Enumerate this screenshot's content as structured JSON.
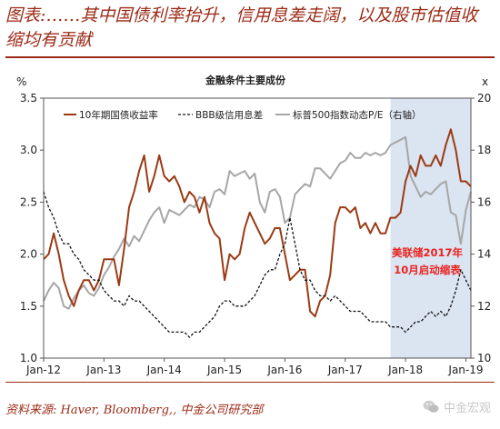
{
  "figure": {
    "title": "图表:……其中国债利率抬升，信用息差走阔，以及股市估值收缩均有贡献",
    "source": "资料来源: Haver, Bloomberg,, 中金公司研究部",
    "watermark": "中金宏观"
  },
  "chart_data": {
    "type": "line",
    "title": "金融条件主要成份",
    "left_axis": {
      "unit_label": "%",
      "range": [
        1.0,
        3.5
      ],
      "ticks": [
        "1.0",
        "1.5",
        "2.0",
        "2.5",
        "3.0",
        "3.5"
      ]
    },
    "right_axis": {
      "unit_label": "x",
      "range": [
        10,
        20
      ],
      "ticks": [
        "10",
        "12",
        "14",
        "16",
        "18",
        "20"
      ]
    },
    "x_axis": {
      "range": [
        "2012-01",
        "2019-02"
      ],
      "ticks": [
        "Jan-12",
        "Jan-13",
        "Jan-14",
        "Jan-15",
        "Jan-16",
        "Jan-17",
        "Jan-18",
        "Jan-19"
      ]
    },
    "legend_position": "top",
    "grid": false,
    "shaded_region": {
      "start": "2017-10",
      "end": "2019-02",
      "color": "#dbe4f1"
    },
    "annotation": {
      "lines": [
        "美联储2017年",
        "10月启动缩表"
      ],
      "color": "#e8231f"
    },
    "series": [
      {
        "name": "10年期国债收益率",
        "axis": "left",
        "color": "#9b3a14",
        "style": "solid",
        "points": [
          [
            "2012-01",
            1.95
          ],
          [
            "2012-02",
            2.0
          ],
          [
            "2012-03",
            2.2
          ],
          [
            "2012-04",
            2.0
          ],
          [
            "2012-05",
            1.75
          ],
          [
            "2012-06",
            1.6
          ],
          [
            "2012-07",
            1.5
          ],
          [
            "2012-08",
            1.65
          ],
          [
            "2012-09",
            1.75
          ],
          [
            "2012-10",
            1.75
          ],
          [
            "2012-11",
            1.65
          ],
          [
            "2012-12",
            1.75
          ],
          [
            "2013-01",
            1.95
          ],
          [
            "2013-02",
            1.95
          ],
          [
            "2013-03",
            1.95
          ],
          [
            "2013-04",
            1.7
          ],
          [
            "2013-05",
            2.05
          ],
          [
            "2013-06",
            2.45
          ],
          [
            "2013-07",
            2.6
          ],
          [
            "2013-08",
            2.8
          ],
          [
            "2013-09",
            2.95
          ],
          [
            "2013-10",
            2.6
          ],
          [
            "2013-11",
            2.75
          ],
          [
            "2013-12",
            2.95
          ],
          [
            "2014-01",
            2.75
          ],
          [
            "2014-02",
            2.7
          ],
          [
            "2014-03",
            2.75
          ],
          [
            "2014-04",
            2.65
          ],
          [
            "2014-05",
            2.5
          ],
          [
            "2014-06",
            2.6
          ],
          [
            "2014-07",
            2.55
          ],
          [
            "2014-08",
            2.4
          ],
          [
            "2014-09",
            2.55
          ],
          [
            "2014-10",
            2.3
          ],
          [
            "2014-11",
            2.2
          ],
          [
            "2014-12",
            2.15
          ],
          [
            "2015-01",
            1.75
          ],
          [
            "2015-02",
            2.0
          ],
          [
            "2015-03",
            1.95
          ],
          [
            "2015-04",
            2.0
          ],
          [
            "2015-05",
            2.25
          ],
          [
            "2015-06",
            2.4
          ],
          [
            "2015-07",
            2.3
          ],
          [
            "2015-08",
            2.2
          ],
          [
            "2015-09",
            2.1
          ],
          [
            "2015-10",
            2.15
          ],
          [
            "2015-11",
            2.25
          ],
          [
            "2015-12",
            2.25
          ],
          [
            "2016-01",
            2.0
          ],
          [
            "2016-02",
            1.75
          ],
          [
            "2016-03",
            1.8
          ],
          [
            "2016-04",
            1.85
          ],
          [
            "2016-05",
            1.85
          ],
          [
            "2016-06",
            1.45
          ],
          [
            "2016-07",
            1.4
          ],
          [
            "2016-08",
            1.55
          ],
          [
            "2016-09",
            1.6
          ],
          [
            "2016-10",
            1.8
          ],
          [
            "2016-11",
            2.3
          ],
          [
            "2016-12",
            2.45
          ],
          [
            "2017-01",
            2.45
          ],
          [
            "2017-02",
            2.4
          ],
          [
            "2017-03",
            2.45
          ],
          [
            "2017-04",
            2.25
          ],
          [
            "2017-05",
            2.3
          ],
          [
            "2017-06",
            2.2
          ],
          [
            "2017-07",
            2.3
          ],
          [
            "2017-08",
            2.2
          ],
          [
            "2017-09",
            2.2
          ],
          [
            "2017-10",
            2.35
          ],
          [
            "2017-11",
            2.35
          ],
          [
            "2017-12",
            2.4
          ],
          [
            "2018-01",
            2.7
          ],
          [
            "2018-02",
            2.85
          ],
          [
            "2018-03",
            2.75
          ],
          [
            "2018-04",
            2.95
          ],
          [
            "2018-05",
            2.85
          ],
          [
            "2018-06",
            2.85
          ],
          [
            "2018-07",
            2.95
          ],
          [
            "2018-08",
            2.85
          ],
          [
            "2018-09",
            3.05
          ],
          [
            "2018-10",
            3.2
          ],
          [
            "2018-11",
            3.0
          ],
          [
            "2018-12",
            2.7
          ],
          [
            "2019-01",
            2.7
          ],
          [
            "2019-02",
            2.65
          ]
        ]
      },
      {
        "name": "BBB级信用息差",
        "axis": "left",
        "color": "#111111",
        "style": "dashed",
        "points": [
          [
            "2012-01",
            2.6
          ],
          [
            "2012-02",
            2.45
          ],
          [
            "2012-03",
            2.35
          ],
          [
            "2012-04",
            2.2
          ],
          [
            "2012-05",
            2.1
          ],
          [
            "2012-06",
            2.1
          ],
          [
            "2012-07",
            2.0
          ],
          [
            "2012-08",
            1.95
          ],
          [
            "2012-09",
            1.85
          ],
          [
            "2012-10",
            1.8
          ],
          [
            "2012-11",
            1.75
          ],
          [
            "2012-12",
            1.75
          ],
          [
            "2013-01",
            1.65
          ],
          [
            "2013-02",
            1.6
          ],
          [
            "2013-03",
            1.55
          ],
          [
            "2013-04",
            1.55
          ],
          [
            "2013-05",
            1.5
          ],
          [
            "2013-06",
            1.6
          ],
          [
            "2013-07",
            1.55
          ],
          [
            "2013-08",
            1.55
          ],
          [
            "2013-09",
            1.5
          ],
          [
            "2013-10",
            1.45
          ],
          [
            "2013-11",
            1.4
          ],
          [
            "2013-12",
            1.35
          ],
          [
            "2014-01",
            1.3
          ],
          [
            "2014-02",
            1.25
          ],
          [
            "2014-03",
            1.25
          ],
          [
            "2014-04",
            1.25
          ],
          [
            "2014-05",
            1.25
          ],
          [
            "2014-06",
            1.2
          ],
          [
            "2014-07",
            1.25
          ],
          [
            "2014-08",
            1.25
          ],
          [
            "2014-09",
            1.3
          ],
          [
            "2014-10",
            1.35
          ],
          [
            "2014-11",
            1.4
          ],
          [
            "2014-12",
            1.5
          ],
          [
            "2015-01",
            1.55
          ],
          [
            "2015-02",
            1.55
          ],
          [
            "2015-03",
            1.5
          ],
          [
            "2015-04",
            1.5
          ],
          [
            "2015-05",
            1.5
          ],
          [
            "2015-06",
            1.55
          ],
          [
            "2015-07",
            1.6
          ],
          [
            "2015-08",
            1.7
          ],
          [
            "2015-09",
            1.8
          ],
          [
            "2015-10",
            1.85
          ],
          [
            "2015-11",
            1.85
          ],
          [
            "2015-12",
            2.0
          ],
          [
            "2016-01",
            2.1
          ],
          [
            "2016-02",
            2.35
          ],
          [
            "2016-03",
            2.1
          ],
          [
            "2016-04",
            1.85
          ],
          [
            "2016-05",
            1.75
          ],
          [
            "2016-06",
            1.75
          ],
          [
            "2016-07",
            1.65
          ],
          [
            "2016-08",
            1.6
          ],
          [
            "2016-09",
            1.6
          ],
          [
            "2016-10",
            1.55
          ],
          [
            "2016-11",
            1.6
          ],
          [
            "2016-12",
            1.55
          ],
          [
            "2017-01",
            1.5
          ],
          [
            "2017-02",
            1.45
          ],
          [
            "2017-03",
            1.45
          ],
          [
            "2017-04",
            1.45
          ],
          [
            "2017-05",
            1.4
          ],
          [
            "2017-06",
            1.35
          ],
          [
            "2017-07",
            1.35
          ],
          [
            "2017-08",
            1.35
          ],
          [
            "2017-09",
            1.35
          ],
          [
            "2017-10",
            1.3
          ],
          [
            "2017-11",
            1.3
          ],
          [
            "2017-12",
            1.3
          ],
          [
            "2018-01",
            1.25
          ],
          [
            "2018-02",
            1.3
          ],
          [
            "2018-03",
            1.35
          ],
          [
            "2018-04",
            1.35
          ],
          [
            "2018-05",
            1.4
          ],
          [
            "2018-06",
            1.45
          ],
          [
            "2018-07",
            1.4
          ],
          [
            "2018-08",
            1.45
          ],
          [
            "2018-09",
            1.4
          ],
          [
            "2018-10",
            1.5
          ],
          [
            "2018-11",
            1.65
          ],
          [
            "2018-12",
            1.85
          ],
          [
            "2019-01",
            1.75
          ],
          [
            "2019-02",
            1.65
          ]
        ]
      },
      {
        "name": "标普500指数动态P/E（右轴）",
        "axis": "right",
        "color": "#a6a6a6",
        "style": "solid",
        "points": [
          [
            "2012-01",
            12.2
          ],
          [
            "2012-02",
            12.6
          ],
          [
            "2012-03",
            12.9
          ],
          [
            "2012-04",
            12.7
          ],
          [
            "2012-05",
            12.0
          ],
          [
            "2012-06",
            11.9
          ],
          [
            "2012-07",
            12.3
          ],
          [
            "2012-08",
            12.6
          ],
          [
            "2012-09",
            12.8
          ],
          [
            "2012-10",
            12.5
          ],
          [
            "2012-11",
            12.4
          ],
          [
            "2012-12",
            12.7
          ],
          [
            "2013-01",
            13.2
          ],
          [
            "2013-02",
            13.5
          ],
          [
            "2013-03",
            13.9
          ],
          [
            "2013-04",
            14.2
          ],
          [
            "2013-05",
            14.6
          ],
          [
            "2013-06",
            14.3
          ],
          [
            "2013-07",
            14.7
          ],
          [
            "2013-08",
            14.5
          ],
          [
            "2013-09",
            14.9
          ],
          [
            "2013-10",
            15.3
          ],
          [
            "2013-11",
            15.6
          ],
          [
            "2013-12",
            15.8
          ],
          [
            "2014-01",
            15.2
          ],
          [
            "2014-02",
            15.7
          ],
          [
            "2014-03",
            15.6
          ],
          [
            "2014-04",
            15.5
          ],
          [
            "2014-05",
            15.7
          ],
          [
            "2014-06",
            15.9
          ],
          [
            "2014-07",
            15.8
          ],
          [
            "2014-08",
            16.2
          ],
          [
            "2014-09",
            16.1
          ],
          [
            "2014-10",
            15.8
          ],
          [
            "2014-11",
            16.4
          ],
          [
            "2014-12",
            16.5
          ],
          [
            "2015-01",
            16.3
          ],
          [
            "2015-02",
            17.2
          ],
          [
            "2015-03",
            17.0
          ],
          [
            "2015-04",
            17.1
          ],
          [
            "2015-05",
            17.2
          ],
          [
            "2015-06",
            16.9
          ],
          [
            "2015-07",
            17.1
          ],
          [
            "2015-08",
            16.0
          ],
          [
            "2015-09",
            15.6
          ],
          [
            "2015-10",
            16.4
          ],
          [
            "2015-11",
            16.5
          ],
          [
            "2015-12",
            16.2
          ],
          [
            "2016-01",
            15.2
          ],
          [
            "2016-02",
            15.4
          ],
          [
            "2016-03",
            16.3
          ],
          [
            "2016-04",
            16.5
          ],
          [
            "2016-05",
            16.7
          ],
          [
            "2016-06",
            16.6
          ],
          [
            "2016-07",
            17.3
          ],
          [
            "2016-08",
            17.3
          ],
          [
            "2016-09",
            17.1
          ],
          [
            "2016-10",
            16.9
          ],
          [
            "2016-11",
            17.2
          ],
          [
            "2016-12",
            17.5
          ],
          [
            "2017-01",
            17.6
          ],
          [
            "2017-02",
            17.9
          ],
          [
            "2017-03",
            17.7
          ],
          [
            "2017-04",
            17.7
          ],
          [
            "2017-05",
            17.9
          ],
          [
            "2017-06",
            17.8
          ],
          [
            "2017-07",
            17.9
          ],
          [
            "2017-08",
            17.8
          ],
          [
            "2017-09",
            17.9
          ],
          [
            "2017-10",
            18.2
          ],
          [
            "2017-11",
            18.3
          ],
          [
            "2017-12",
            18.4
          ],
          [
            "2018-01",
            18.5
          ],
          [
            "2018-02",
            17.0
          ],
          [
            "2018-03",
            16.6
          ],
          [
            "2018-04",
            16.2
          ],
          [
            "2018-05",
            16.4
          ],
          [
            "2018-06",
            16.3
          ],
          [
            "2018-07",
            16.5
          ],
          [
            "2018-08",
            16.7
          ],
          [
            "2018-09",
            16.8
          ],
          [
            "2018-10",
            15.6
          ],
          [
            "2018-11",
            15.5
          ],
          [
            "2018-12",
            14.4
          ],
          [
            "2019-01",
            15.7
          ],
          [
            "2019-02",
            16.4
          ]
        ]
      }
    ]
  }
}
